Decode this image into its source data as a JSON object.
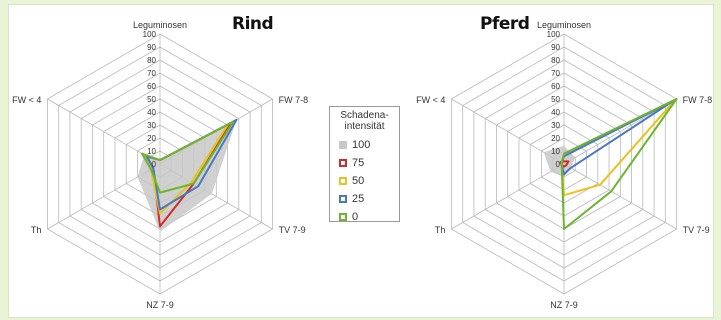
{
  "chart_data": [
    {
      "type": "radar",
      "title": "Rind",
      "axes": [
        "Leguminosen",
        "FW 7-8",
        "TV 7-9",
        "NZ 7-9",
        "Th",
        "FW < 4"
      ],
      "ticks": [
        "0",
        "10",
        "20",
        "30",
        "40",
        "50",
        "60",
        "70",
        "80",
        "90",
        "100"
      ],
      "rlim": [
        0,
        100
      ],
      "series": [
        {
          "name": "100",
          "values": [
            2,
            68,
            46,
            52,
            20,
            14
          ]
        },
        {
          "name": "75",
          "values": [
            3,
            63,
            30,
            48,
            6,
            12
          ]
        },
        {
          "name": "50",
          "values": [
            3,
            60,
            28,
            38,
            8,
            13
          ]
        },
        {
          "name": "25",
          "values": [
            3,
            68,
            34,
            35,
            6,
            12
          ]
        },
        {
          "name": "0",
          "values": [
            3,
            65,
            30,
            22,
            8,
            16
          ]
        }
      ]
    },
    {
      "type": "radar",
      "title": "Pferd",
      "axes": [
        "Leguminosen",
        "FW 7-8",
        "TV 7-9",
        "NZ 7-9",
        "Th",
        "FW < 4"
      ],
      "ticks": [
        "0",
        "10",
        "20",
        "30",
        "40",
        "50",
        "60",
        "70",
        "80",
        "90",
        "100"
      ],
      "rlim": [
        0,
        100
      ],
      "series": [
        {
          "name": "100",
          "values": [
            14,
            10,
            6,
            10,
            12,
            18
          ]
        },
        {
          "name": "75",
          "values": [
            2,
            4,
            2,
            2,
            2,
            3
          ]
        },
        {
          "name": "50",
          "values": [
            8,
            99,
            32,
            24,
            2,
            2
          ]
        },
        {
          "name": "25",
          "values": [
            6,
            97,
            6,
            8,
            2,
            2
          ]
        },
        {
          "name": "0",
          "values": [
            8,
            100,
            42,
            50,
            2,
            2
          ]
        }
      ]
    }
  ],
  "legend": {
    "title": "Schadena-\nintensität",
    "items": [
      {
        "label": "100",
        "color": "#c8c8c8",
        "filled": true
      },
      {
        "label": "75",
        "color": "#d42a2a",
        "filled": false
      },
      {
        "label": "50",
        "color": "#e9c21e",
        "filled": false
      },
      {
        "label": "25",
        "color": "#4a78c4",
        "filled": false
      },
      {
        "label": "0",
        "color": "#6db52e",
        "filled": false
      }
    ]
  }
}
